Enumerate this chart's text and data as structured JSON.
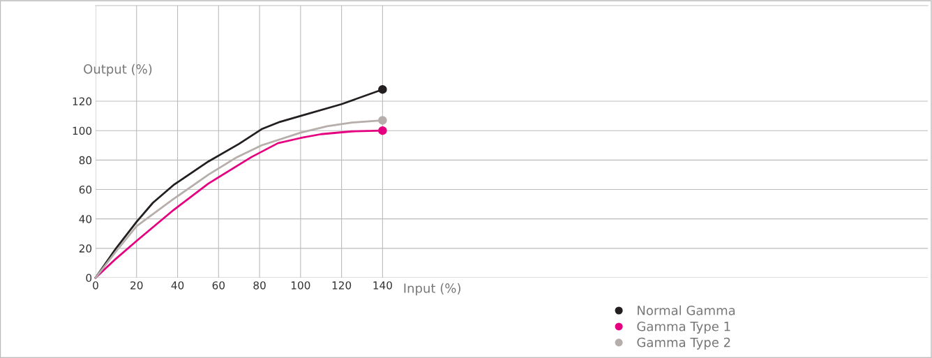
{
  "chart_data": {
    "type": "line",
    "xlabel": "Input (%)",
    "ylabel": "Output (%)",
    "xlim": [
      0,
      406
    ],
    "ylim": [
      0,
      185
    ],
    "xticks": [
      0,
      20,
      40,
      60,
      80,
      100,
      120,
      140
    ],
    "yticks": [
      0,
      20,
      40,
      60,
      80,
      100,
      120
    ],
    "grid": true,
    "legend": "bottom right",
    "line_style": "solid",
    "series": [
      {
        "name": "Normal Gamma",
        "color": "#231f20",
        "x": [
          0,
          10,
          20,
          28,
          38,
          55,
          70,
          81,
          90,
          100,
          120,
          140
        ],
        "values": [
          0,
          20,
          38,
          51,
          63,
          79,
          91,
          101,
          106,
          110,
          118,
          128
        ]
      },
      {
        "name": "Gamma Type 1",
        "color": "#e4007f",
        "x": [
          0,
          10,
          20,
          38,
          55,
          76,
          89,
          100,
          110,
          125,
          140
        ],
        "values": [
          0,
          13,
          25,
          46,
          64,
          82,
          91.5,
          95,
          97.6,
          99.5,
          100
        ]
      },
      {
        "name": "Gamma Type 2",
        "color": "#b5aeab",
        "x": [
          0,
          10,
          20,
          38,
          55,
          69,
          81,
          100,
          113,
          125,
          140
        ],
        "values": [
          0,
          18,
          35,
          53.5,
          70,
          82,
          90,
          98.6,
          103,
          105.5,
          107
        ]
      },
      {
        "type": "scatter",
        "marker": "circle",
        "color": "#231f20",
        "x": [
          140
        ],
        "values": [
          128
        ]
      },
      {
        "type": "scatter",
        "marker": "circle",
        "color": "#e4007f",
        "x": [
          140
        ],
        "values": [
          100
        ]
      },
      {
        "type": "scatter",
        "marker": "circle",
        "color": "#b5aeab",
        "x": [
          140
        ],
        "values": [
          107
        ]
      }
    ]
  }
}
